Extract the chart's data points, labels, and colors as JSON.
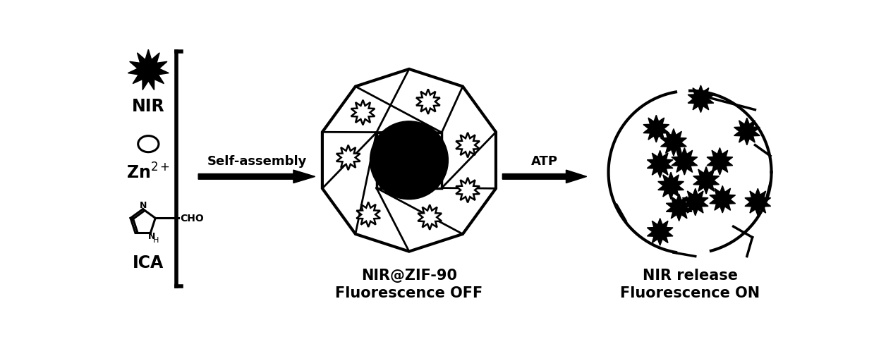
{
  "bg_color": "#ffffff",
  "text_color": "#000000",
  "fig_width": 12.39,
  "fig_height": 4.95,
  "labels": {
    "NIR": "NIR",
    "Zn2+": "Zn$^{2+}$",
    "ICA": "ICA",
    "self_assembly": "Self-assembly",
    "ATP": "ATP",
    "NIR_ZIF90": "NIR@ZIF-90",
    "fluor_off": "Fluorescence OFF",
    "NIR_release": "NIR release",
    "fluor_on": "Fluorescence ON"
  }
}
